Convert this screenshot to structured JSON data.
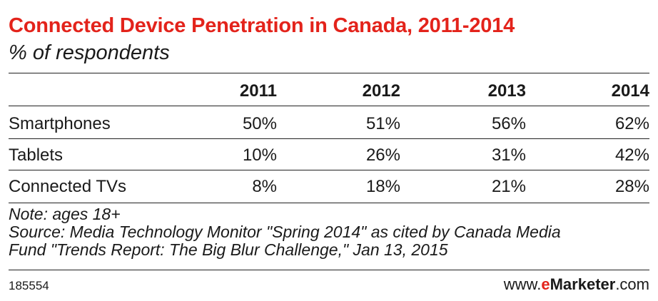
{
  "chart_data": {
    "type": "table",
    "title": "Connected Device Penetration in Canada, 2011-2014",
    "subtitle": "% of respondents",
    "columns": [
      "2011",
      "2012",
      "2013",
      "2014"
    ],
    "rows": [
      {
        "label": "Smartphones",
        "values": [
          "50%",
          "51%",
          "56%",
          "62%"
        ]
      },
      {
        "label": "Tablets",
        "values": [
          "10%",
          "26%",
          "31%",
          "42%"
        ]
      },
      {
        "label": "Connected TVs",
        "values": [
          "8%",
          "18%",
          "21%",
          "28%"
        ]
      }
    ]
  },
  "notes": {
    "note": "Note: ages 18+",
    "source_line1": "Source: Media Technology Monitor \"Spring 2014\" as cited by Canada Media",
    "source_line2": "Fund \"Trends Report: The Big Blur Challenge,\" Jan 13, 2015"
  },
  "footer": {
    "chart_id": "185554",
    "brand_prefix": "www.",
    "brand_e": "e",
    "brand_name": "Marketer",
    "brand_suffix": ".com"
  },
  "colors": {
    "accent": "#e3231b",
    "text": "#1a1a1a",
    "rule": "#222222"
  }
}
